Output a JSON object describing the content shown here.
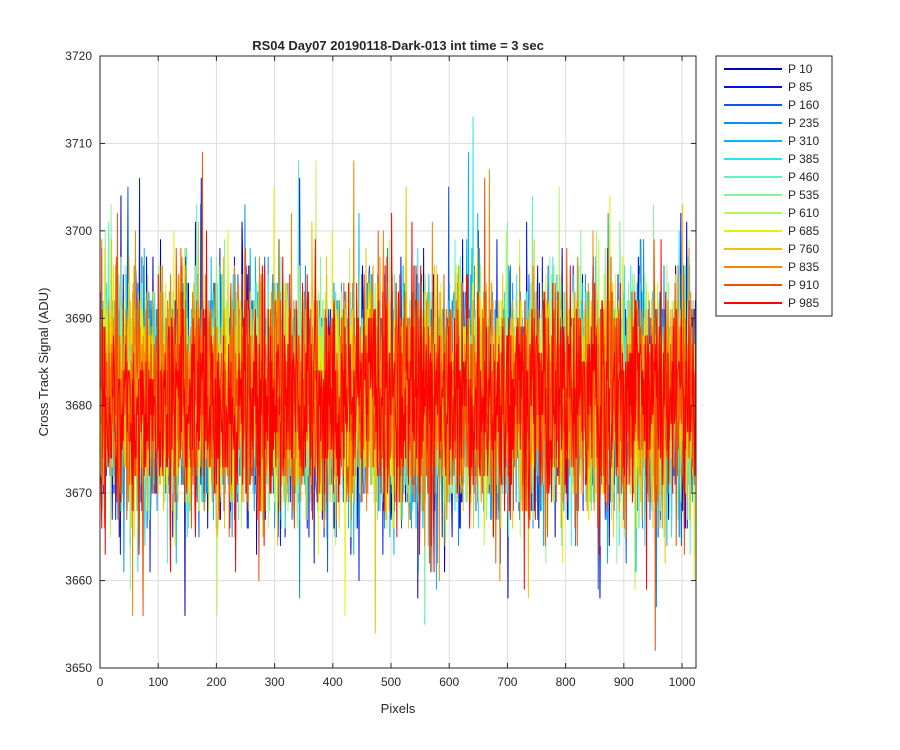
{
  "chart_data": {
    "type": "line",
    "title": "RS04 Day07 20190118-Dark-013 int time = 3 sec",
    "xlabel": "Pixels",
    "ylabel": "Cross Track Signal (ADU)",
    "xlim": [
      0,
      1024
    ],
    "ylim": [
      3650,
      3720
    ],
    "xticks": [
      0,
      100,
      200,
      300,
      400,
      500,
      600,
      700,
      800,
      900,
      1000
    ],
    "yticks": [
      3650,
      3660,
      3670,
      3680,
      3690,
      3700,
      3710,
      3720
    ],
    "grid": true,
    "legend_position": "outside-top-right",
    "num_points": 1024,
    "series": [
      {
        "name": "P 10",
        "color": "#0000bf",
        "mean": 3681,
        "std": 6.5,
        "seed": 11,
        "spikes": [
          [
            35,
            3704
          ],
          [
            145,
            3656
          ],
          [
            243,
            3701
          ],
          [
            545,
            3658
          ],
          [
            700,
            3658
          ],
          [
            858,
            3658
          ]
        ]
      },
      {
        "name": "P 85",
        "color": "#0012ea",
        "mean": 3681,
        "std": 6.5,
        "seed": 23,
        "spikes": [
          [
            67,
            3706
          ],
          [
            85,
            3661
          ],
          [
            173,
            3706
          ],
          [
            342,
            3706
          ],
          [
            444,
            3660
          ],
          [
            732,
            3701
          ]
        ]
      },
      {
        "name": "P 160",
        "color": "#0d58f2",
        "mean": 3681,
        "std": 6.5,
        "seed": 37,
        "spikes": [
          [
            47,
            3705
          ],
          [
            172,
            3703
          ],
          [
            598,
            3705
          ],
          [
            855,
            3659
          ]
        ]
      },
      {
        "name": "P 235",
        "color": "#0a8fef",
        "mean": 3681,
        "std": 6.5,
        "seed": 51,
        "spikes": [
          [
            40,
            3661
          ],
          [
            248,
            3703
          ],
          [
            342,
            3658
          ],
          [
            955,
            3657
          ]
        ]
      },
      {
        "name": "P 310",
        "color": "#00b7ee",
        "mean": 3681,
        "std": 6.5,
        "seed": 67,
        "spikes": [
          [
            632,
            3709
          ],
          [
            648,
            3702
          ],
          [
            920,
            3661
          ]
        ]
      },
      {
        "name": "P 385",
        "color": "#23e6ef",
        "mean": 3681,
        "std": 6.5,
        "seed": 79,
        "spikes": [
          [
            640,
            3713
          ],
          [
            557,
            3655
          ],
          [
            340,
            3706
          ]
        ]
      },
      {
        "name": "P 460",
        "color": "#5ff2c4",
        "mean": 3681,
        "std": 6.5,
        "seed": 97,
        "spikes": [
          [
            340,
            3708
          ],
          [
            165,
            3703
          ],
          [
            742,
            3704
          ]
        ]
      },
      {
        "name": "P 535",
        "color": "#8cf29a",
        "mean": 3681,
        "std": 6.5,
        "seed": 113,
        "spikes": [
          [
            18,
            3703
          ],
          [
            557,
            3656
          ],
          [
            950,
            3703
          ]
        ]
      },
      {
        "name": "P 610",
        "color": "#b8f260",
        "mean": 3681,
        "std": 6.5,
        "seed": 131,
        "spikes": [
          [
            370,
            3708
          ],
          [
            200,
            3656
          ],
          [
            788,
            3705
          ]
        ]
      },
      {
        "name": "P 685",
        "color": "#e8f000",
        "mean": 3681,
        "std": 6.5,
        "seed": 149,
        "spikes": [
          [
            298,
            3705
          ],
          [
            420,
            3656
          ],
          [
            875,
            3704
          ]
        ]
      },
      {
        "name": "P 760",
        "color": "#f2c200",
        "mean": 3681,
        "std": 6.5,
        "seed": 167,
        "spikes": [
          [
            472,
            3654
          ],
          [
            525,
            3705
          ],
          [
            735,
            3658
          ],
          [
            1000,
            3703
          ]
        ]
      },
      {
        "name": "P 835",
        "color": "#f48600",
        "mean": 3681,
        "std": 6.5,
        "seed": 181,
        "spikes": [
          [
            435,
            3708
          ],
          [
            55,
            3656
          ],
          [
            668,
            3707
          ]
        ]
      },
      {
        "name": "P 910",
        "color": "#f24f05",
        "mean": 3681,
        "std": 6.5,
        "seed": 193,
        "spikes": [
          [
            175,
            3709
          ],
          [
            953,
            3652
          ],
          [
            660,
            3706
          ],
          [
            73,
            3656
          ]
        ]
      },
      {
        "name": "P 985",
        "color": "#ff0000",
        "mean": 3681,
        "std": 6.5,
        "seed": 211,
        "spikes": [
          [
            120,
            3661
          ],
          [
            500,
            3702
          ],
          [
            250,
            3670
          ]
        ]
      }
    ]
  }
}
